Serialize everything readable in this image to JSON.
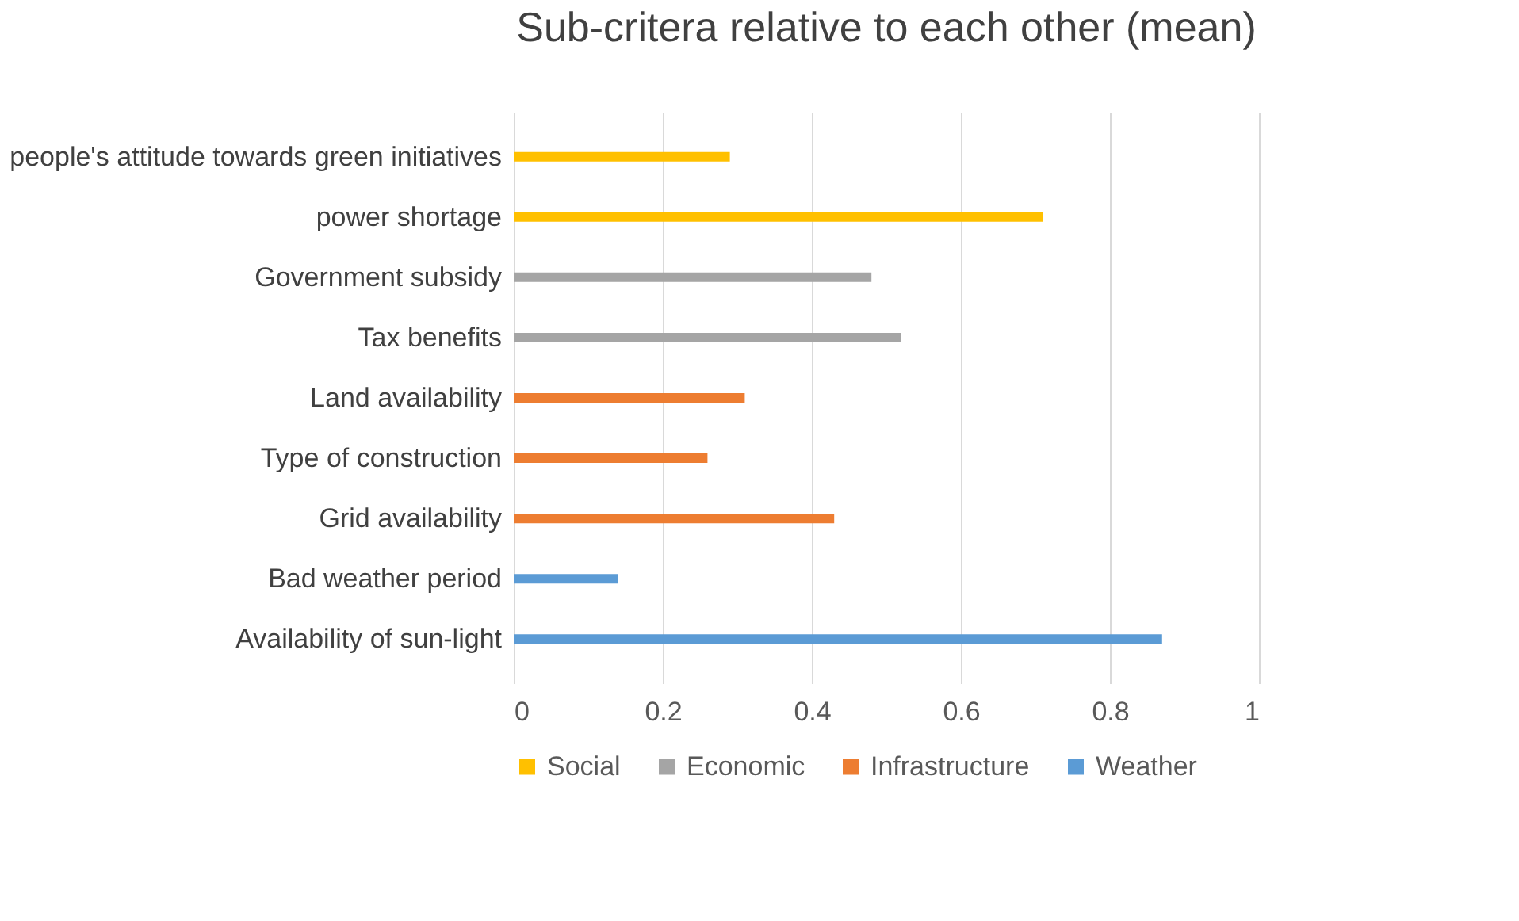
{
  "chart_data": {
    "type": "bar",
    "orientation": "horizontal",
    "title": "Sub-critera relative to each other (mean)",
    "categories": [
      "people's attitude towards green initiatives",
      "power shortage",
      "Government subsidy",
      "Tax benefits",
      "Land availability",
      "Type of construction",
      "Grid availability",
      "Bad weather period",
      "Availability of sun-light"
    ],
    "series": [
      {
        "name": "Social",
        "color": "#ffc000",
        "values": [
          0.29,
          0.71,
          null,
          null,
          null,
          null,
          null,
          null,
          null
        ]
      },
      {
        "name": "Economic",
        "color": "#a5a5a5",
        "values": [
          null,
          null,
          0.48,
          0.52,
          null,
          null,
          null,
          null,
          null
        ]
      },
      {
        "name": "Infrastructure",
        "color": "#ed7d31",
        "values": [
          null,
          null,
          null,
          null,
          0.31,
          0.26,
          0.43,
          null,
          null
        ]
      },
      {
        "name": "Weather",
        "color": "#5b9bd5",
        "values": [
          null,
          null,
          null,
          null,
          null,
          null,
          null,
          0.14,
          0.87
        ]
      }
    ],
    "xlim": [
      0,
      1
    ],
    "xticks": [
      0,
      0.2,
      0.4,
      0.6,
      0.8,
      1
    ],
    "grid": "x",
    "legend": "bottom"
  }
}
